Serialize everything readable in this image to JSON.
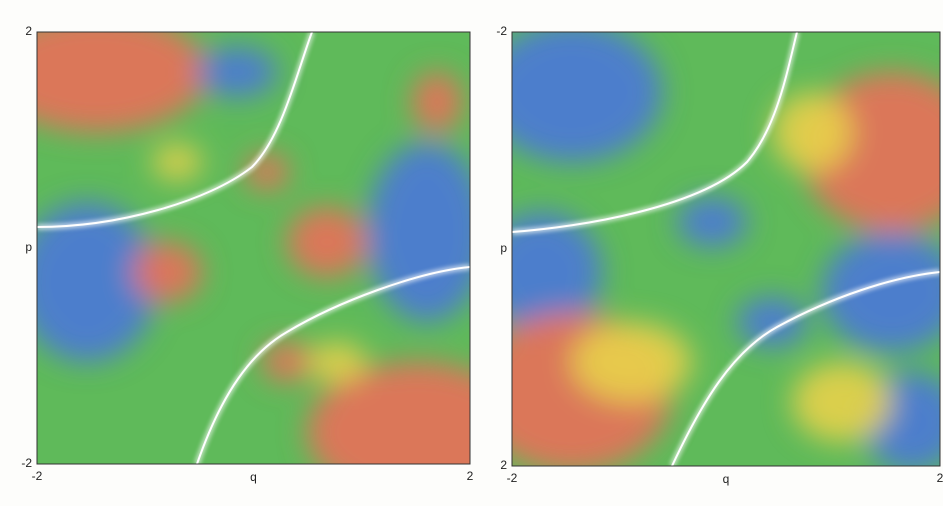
{
  "chart_data": [
    {
      "type": "heatmap",
      "xlabel": "q",
      "ylabel": "p",
      "xlim": [
        -2,
        2
      ],
      "ylim": [
        -2,
        2
      ],
      "xticks": [
        -2,
        2
      ],
      "yticks": [
        -2,
        2
      ]
    },
    {
      "type": "heatmap",
      "xlabel": "q",
      "ylabel": "p",
      "xlim": [
        -2,
        2
      ],
      "ylim": [
        2,
        -2
      ],
      "xticks": [
        -2,
        2
      ],
      "yticks": [
        2,
        -2
      ]
    }
  ]
}
